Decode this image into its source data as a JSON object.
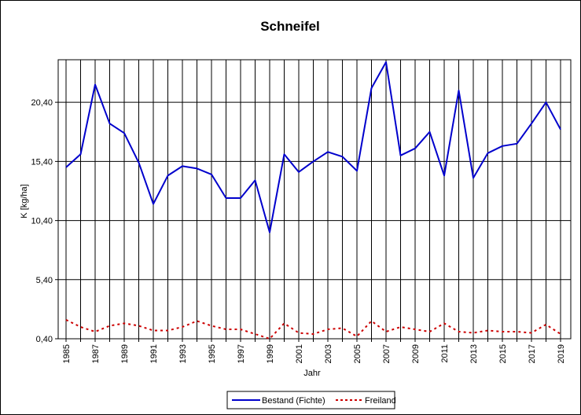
{
  "chart_data": {
    "type": "line",
    "title": "Schneifel",
    "xlabel": "Jahr",
    "ylabel": "K [kg/ha]",
    "ylim": [
      0.4,
      24.0
    ],
    "yticks": [
      "0,40",
      "5,40",
      "10,40",
      "15,40",
      "20,40"
    ],
    "x": [
      1985,
      1986,
      1987,
      1988,
      1989,
      1990,
      1991,
      1992,
      1993,
      1994,
      1995,
      1996,
      1997,
      1998,
      1999,
      2000,
      2001,
      2002,
      2003,
      2004,
      2005,
      2006,
      2007,
      2008,
      2009,
      2010,
      2011,
      2012,
      2013,
      2014,
      2015,
      2016,
      2017,
      2018,
      2019
    ],
    "xticks": [
      "1985",
      "1987",
      "1989",
      "1991",
      "1993",
      "1995",
      "1997",
      "1999",
      "2001",
      "2003",
      "2005",
      "2007",
      "2009",
      "2011",
      "2013",
      "2015",
      "2017",
      "2019"
    ],
    "grid": true,
    "legend_position": "bottom",
    "series": [
      {
        "name": "Bestand (Fichte)",
        "color": "#0000cc",
        "style": "solid",
        "values": [
          14.9,
          16.0,
          21.9,
          18.6,
          17.8,
          15.3,
          11.8,
          14.2,
          15.0,
          14.8,
          14.3,
          12.3,
          12.3,
          13.8,
          9.4,
          16.0,
          14.5,
          15.4,
          16.2,
          15.8,
          14.6,
          21.6,
          23.8,
          15.9,
          16.5,
          17.9,
          14.2,
          21.4,
          14.0,
          16.1,
          16.7,
          16.9,
          18.6,
          20.4,
          18.1
        ]
      },
      {
        "name": "Freiland",
        "color": "#cc0000",
        "style": "dashed",
        "values": [
          2.0,
          1.4,
          1.0,
          1.5,
          1.7,
          1.5,
          1.1,
          1.1,
          1.4,
          1.9,
          1.5,
          1.2,
          1.2,
          0.8,
          0.4,
          1.7,
          0.9,
          0.8,
          1.2,
          1.3,
          0.6,
          1.9,
          1.0,
          1.4,
          1.2,
          1.0,
          1.7,
          1.0,
          0.9,
          1.1,
          1.0,
          1.0,
          0.9,
          1.6,
          0.8
        ]
      }
    ]
  }
}
